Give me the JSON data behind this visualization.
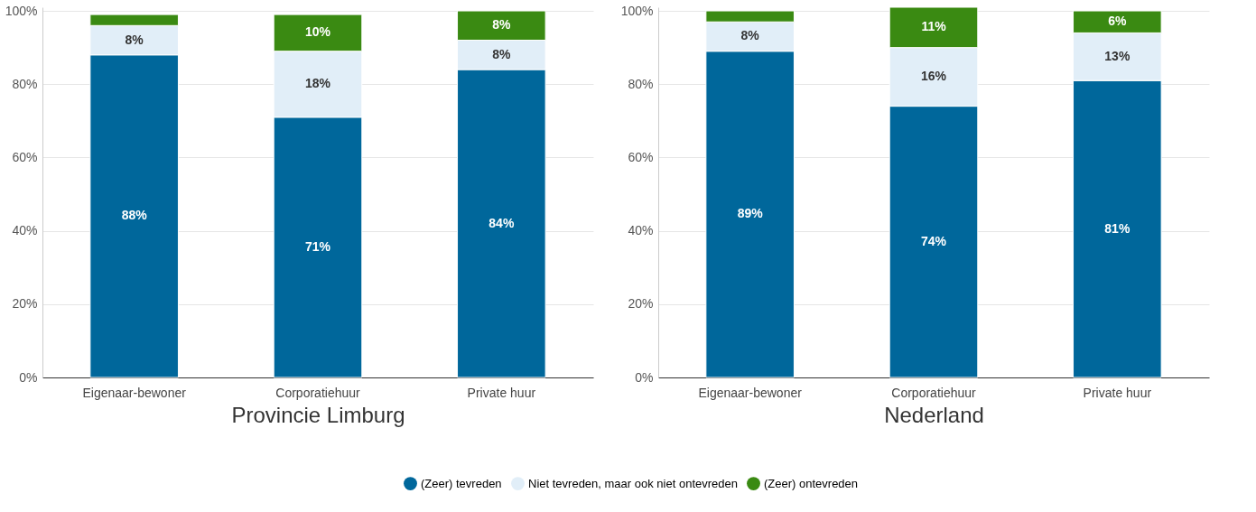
{
  "chart_data": [
    {
      "type": "bar",
      "stacked": true,
      "xlabel": "Provincie Limburg",
      "categories": [
        "Eigenaar-bewoner",
        "Corporatiehuur",
        "Private huur"
      ],
      "series": [
        {
          "name": "(Zeer) tevreden",
          "color": "#00679b",
          "values": [
            88,
            71,
            84
          ],
          "value_labels": [
            "88%",
            "71%",
            "84%"
          ]
        },
        {
          "name": "Niet tevreden, maar ook niet ontevreden",
          "color": "#e1eef8",
          "values": [
            8,
            18,
            8
          ],
          "value_labels": [
            "8%",
            "18%",
            "8%"
          ]
        },
        {
          "name": "(Zeer) ontevreden",
          "color": "#3a8a12",
          "values": [
            3,
            10,
            8
          ],
          "value_labels": [
            null,
            "10%",
            "8%"
          ]
        }
      ],
      "ylim": [
        0,
        101
      ],
      "yticks": [
        {
          "value": 0,
          "label": "0%"
        },
        {
          "value": 20,
          "label": "20%"
        },
        {
          "value": 40,
          "label": "40%"
        },
        {
          "value": 60,
          "label": "60%"
        },
        {
          "value": 80,
          "label": "80%"
        },
        {
          "value": 100,
          "label": "100%"
        }
      ],
      "grid": "y",
      "legend": "bottom"
    },
    {
      "type": "bar",
      "stacked": true,
      "xlabel": "Nederland",
      "categories": [
        "Eigenaar-bewoner",
        "Corporatiehuur",
        "Private huur"
      ],
      "series": [
        {
          "name": "(Zeer) tevreden",
          "color": "#00679b",
          "values": [
            89,
            74,
            81
          ],
          "value_labels": [
            "89%",
            "74%",
            "81%"
          ]
        },
        {
          "name": "Niet tevreden, maar ook niet ontevreden",
          "color": "#e1eef8",
          "values": [
            8,
            16,
            13
          ],
          "value_labels": [
            "8%",
            "16%",
            "13%"
          ]
        },
        {
          "name": "(Zeer) ontevreden",
          "color": "#3a8a12",
          "values": [
            3,
            11,
            6
          ],
          "value_labels": [
            null,
            "11%",
            "6%"
          ]
        }
      ],
      "ylim": [
        0,
        101
      ],
      "yticks": [
        {
          "value": 0,
          "label": "0%"
        },
        {
          "value": 20,
          "label": "20%"
        },
        {
          "value": 40,
          "label": "40%"
        },
        {
          "value": 60,
          "label": "60%"
        },
        {
          "value": 80,
          "label": "80%"
        },
        {
          "value": 100,
          "label": "100%"
        }
      ],
      "grid": "y",
      "legend": "bottom"
    }
  ]
}
